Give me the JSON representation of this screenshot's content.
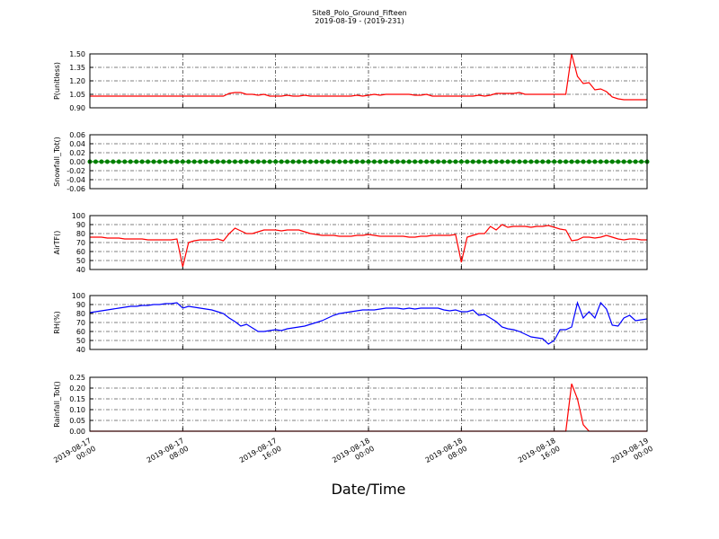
{
  "chart_data": {
    "type": "multi_panel_line",
    "title": "Site8_Polo_Ground_Fifteen",
    "subtitle": "2019-08-19 - (2019-231)",
    "xlabel": "Date/Time",
    "grid": true,
    "xlim": [
      "2019-08-17 00:00",
      "2019-08-19 00:00"
    ],
    "xticks": [
      {
        "value": "2019-08-17 00:00",
        "label": [
          "2019-08-17",
          "00:00"
        ]
      },
      {
        "value": "2019-08-17 08:00",
        "label": [
          "2019-08-17",
          "08:00"
        ]
      },
      {
        "value": "2019-08-17 16:00",
        "label": [
          "2019-08-17",
          "16:00"
        ]
      },
      {
        "value": "2019-08-18 00:00",
        "label": [
          "2019-08-18",
          "00:00"
        ]
      },
      {
        "value": "2019-08-18 08:00",
        "label": [
          "2019-08-18",
          "08:00"
        ]
      },
      {
        "value": "2019-08-18 16:00",
        "label": [
          "2019-08-18",
          "16:00"
        ]
      },
      {
        "value": "2019-08-19 00:00",
        "label": [
          "2019-08-19",
          "00:00"
        ]
      }
    ],
    "x": [
      "2019-08-17 00:00",
      "2019-08-17 00:30",
      "2019-08-17 01:00",
      "2019-08-17 01:30",
      "2019-08-17 02:00",
      "2019-08-17 02:30",
      "2019-08-17 03:00",
      "2019-08-17 03:30",
      "2019-08-17 04:00",
      "2019-08-17 04:30",
      "2019-08-17 05:00",
      "2019-08-17 05:30",
      "2019-08-17 06:00",
      "2019-08-17 06:30",
      "2019-08-17 07:00",
      "2019-08-17 07:30",
      "2019-08-17 08:00",
      "2019-08-17 08:30",
      "2019-08-17 09:00",
      "2019-08-17 09:30",
      "2019-08-17 10:00",
      "2019-08-17 10:30",
      "2019-08-17 11:00",
      "2019-08-17 11:30",
      "2019-08-17 12:00",
      "2019-08-17 12:30",
      "2019-08-17 13:00",
      "2019-08-17 13:30",
      "2019-08-17 14:00",
      "2019-08-17 14:30",
      "2019-08-17 15:00",
      "2019-08-17 15:30",
      "2019-08-17 16:00",
      "2019-08-17 16:30",
      "2019-08-17 17:00",
      "2019-08-17 17:30",
      "2019-08-17 18:00",
      "2019-08-17 18:30",
      "2019-08-17 19:00",
      "2019-08-17 19:30",
      "2019-08-17 20:00",
      "2019-08-17 20:30",
      "2019-08-17 21:00",
      "2019-08-17 21:30",
      "2019-08-17 22:00",
      "2019-08-17 22:30",
      "2019-08-17 23:00",
      "2019-08-17 23:30",
      "2019-08-18 00:00",
      "2019-08-18 00:30",
      "2019-08-18 01:00",
      "2019-08-18 01:30",
      "2019-08-18 02:00",
      "2019-08-18 02:30",
      "2019-08-18 03:00",
      "2019-08-18 03:30",
      "2019-08-18 04:00",
      "2019-08-18 04:30",
      "2019-08-18 05:00",
      "2019-08-18 05:30",
      "2019-08-18 06:00",
      "2019-08-18 06:30",
      "2019-08-18 07:00",
      "2019-08-18 07:30",
      "2019-08-18 08:00",
      "2019-08-18 08:30",
      "2019-08-18 09:00",
      "2019-08-18 09:30",
      "2019-08-18 10:00",
      "2019-08-18 10:30",
      "2019-08-18 11:00",
      "2019-08-18 11:30",
      "2019-08-18 12:00",
      "2019-08-18 12:30",
      "2019-08-18 13:00",
      "2019-08-18 13:30",
      "2019-08-18 14:00",
      "2019-08-18 14:30",
      "2019-08-18 15:00",
      "2019-08-18 15:30",
      "2019-08-18 16:00",
      "2019-08-18 16:30",
      "2019-08-18 17:00",
      "2019-08-18 17:30",
      "2019-08-18 18:00",
      "2019-08-18 18:30",
      "2019-08-18 19:00",
      "2019-08-18 19:30",
      "2019-08-18 20:00",
      "2019-08-18 20:30",
      "2019-08-18 21:00",
      "2019-08-18 21:30",
      "2019-08-18 22:00",
      "2019-08-18 22:30",
      "2019-08-18 23:00",
      "2019-08-18 23:30",
      "2019-08-19 00:00"
    ],
    "panels": [
      {
        "ylabel": "P(unitless)",
        "ylim": [
          0.9,
          1.5
        ],
        "yticks": [
          {
            "value": 0.9,
            "label": "0.90"
          },
          1.05,
          {
            "value": 1.2,
            "label": "1.20"
          },
          1.35,
          {
            "value": 1.5,
            "label": "1.50"
          }
        ],
        "series": [
          {
            "color": "#ff0000",
            "values": [
              1.03,
              1.03,
              1.03,
              1.03,
              1.03,
              1.03,
              1.03,
              1.03,
              1.03,
              1.03,
              1.03,
              1.03,
              1.03,
              1.03,
              1.03,
              1.03,
              1.03,
              1.03,
              1.03,
              1.03,
              1.03,
              1.03,
              1.03,
              1.03,
              1.06,
              1.07,
              1.07,
              1.05,
              1.05,
              1.04,
              1.05,
              1.03,
              1.03,
              1.03,
              1.04,
              1.03,
              1.03,
              1.04,
              1.03,
              1.03,
              1.03,
              1.03,
              1.03,
              1.03,
              1.03,
              1.03,
              1.04,
              1.03,
              1.04,
              1.05,
              1.04,
              1.05,
              1.05,
              1.05,
              1.05,
              1.05,
              1.04,
              1.04,
              1.05,
              1.03,
              1.03,
              1.03,
              1.03,
              1.03,
              1.03,
              1.03,
              1.03,
              1.04,
              1.03,
              1.04,
              1.06,
              1.06,
              1.06,
              1.06,
              1.07,
              1.05,
              1.05,
              1.05,
              1.05,
              1.05,
              1.05,
              1.05,
              1.05,
              1.5,
              1.25,
              1.17,
              1.18,
              1.1,
              1.11,
              1.08,
              1.02,
              1.0,
              0.99,
              0.99,
              0.99,
              0.99,
              0.99
            ]
          }
        ]
      },
      {
        "ylabel": "Snowfall_Tot()",
        "ylim": [
          -0.06,
          0.06
        ],
        "yticks": [
          -0.06,
          -0.04,
          -0.02,
          {
            "value": 0,
            "label": "0.00"
          },
          0.02,
          0.04,
          0.06
        ],
        "series": [
          {
            "color": "#008000",
            "marker": "o",
            "values": [
              0,
              0,
              0,
              0,
              0,
              0,
              0,
              0,
              0,
              0,
              0,
              0,
              0,
              0,
              0,
              0,
              0,
              0,
              0,
              0,
              0,
              0,
              0,
              0,
              0,
              0,
              0,
              0,
              0,
              0,
              0,
              0,
              0,
              0,
              0,
              0,
              0,
              0,
              0,
              0,
              0,
              0,
              0,
              0,
              0,
              0,
              0,
              0,
              0,
              0,
              0,
              0,
              0,
              0,
              0,
              0,
              0,
              0,
              0,
              0,
              0,
              0,
              0,
              0,
              0,
              0,
              0,
              0,
              0,
              0,
              0,
              0,
              0,
              0,
              0,
              0,
              0,
              0,
              0,
              0,
              0,
              0,
              0,
              0,
              0,
              0,
              0,
              0,
              0,
              0,
              0,
              0,
              0,
              0,
              0,
              0,
              0
            ]
          }
        ]
      },
      {
        "ylabel": "AirTF()",
        "ylim": [
          40,
          100
        ],
        "yticks": [
          40,
          50,
          60,
          70,
          80,
          90,
          100
        ],
        "series": [
          {
            "color": "#ff0000",
            "values": [
              76,
              76,
              76,
              75,
              75,
              75,
              74,
              74,
              74,
              74,
              73,
              73,
              73,
              73,
              73,
              74,
              43,
              70,
              72,
              73,
              73,
              73,
              74,
              72,
              80,
              86,
              83,
              80,
              80,
              82,
              84,
              84,
              84,
              83,
              84,
              84,
              84,
              82,
              80,
              79,
              78,
              78,
              78,
              77,
              77,
              77,
              78,
              78,
              79,
              78,
              77,
              77,
              77,
              77,
              77,
              76,
              76,
              77,
              77,
              78,
              78,
              78,
              78,
              79,
              48,
              76,
              78,
              80,
              80,
              88,
              84,
              90,
              87,
              88,
              88,
              88,
              87,
              88,
              88,
              89,
              87,
              85,
              84,
              72,
              73,
              76,
              76,
              75,
              76,
              78,
              76,
              74,
              73,
              74,
              74,
              73,
              73
            ]
          }
        ]
      },
      {
        "ylabel": "RH(%)",
        "ylim": [
          40,
          100
        ],
        "yticks": [
          40,
          50,
          60,
          70,
          80,
          90,
          100
        ],
        "series": [
          {
            "color": "#0000ff",
            "values": [
              81,
              82,
              83,
              84,
              85,
              86,
              87,
              88,
              88,
              89,
              89,
              90,
              90,
              91,
              91,
              92,
              86,
              88,
              87,
              86,
              85,
              84,
              82,
              80,
              75,
              71,
              66,
              68,
              64,
              60,
              60,
              61,
              62,
              61,
              63,
              64,
              65,
              66,
              68,
              70,
              72,
              75,
              78,
              80,
              81,
              82,
              83,
              84,
              84,
              84,
              85,
              86,
              86,
              86,
              85,
              86,
              85,
              86,
              86,
              86,
              86,
              84,
              83,
              84,
              82,
              82,
              84,
              78,
              79,
              75,
              71,
              65,
              63,
              62,
              60,
              57,
              54,
              53,
              52,
              46,
              50,
              62,
              62,
              65,
              92,
              75,
              82,
              75,
              92,
              85,
              67,
              66,
              75,
              78,
              72,
              73,
              74
            ]
          }
        ]
      },
      {
        "ylabel": "Rainfall_Tot()",
        "ylim": [
          0,
          0.25
        ],
        "yticks": [
          {
            "value": 0,
            "label": "0.00"
          },
          0.05,
          {
            "value": 0.1,
            "label": "0.10"
          },
          0.15,
          {
            "value": 0.2,
            "label": "0.20"
          },
          0.25
        ],
        "series": [
          {
            "color": "#ff0000",
            "values": [
              0,
              0,
              0,
              0,
              0,
              0,
              0,
              0,
              0,
              0,
              0,
              0,
              0,
              0,
              0,
              0,
              0,
              0,
              0,
              0,
              0,
              0,
              0,
              0,
              0,
              0,
              0,
              0,
              0,
              0,
              0,
              0,
              0,
              0,
              0,
              0,
              0,
              0,
              0,
              0,
              0,
              0,
              0,
              0,
              0,
              0,
              0,
              0,
              0,
              0,
              0,
              0,
              0,
              0,
              0,
              0,
              0,
              0,
              0,
              0,
              0,
              0,
              0,
              0,
              0,
              0,
              0,
              0,
              0,
              0,
              0,
              0,
              0,
              0,
              0,
              0,
              0,
              0,
              0,
              0,
              0,
              0,
              0,
              0.22,
              0.15,
              0.03,
              0,
              0,
              0,
              0,
              0,
              0,
              0,
              0,
              0,
              0,
              0
            ]
          }
        ]
      }
    ]
  }
}
